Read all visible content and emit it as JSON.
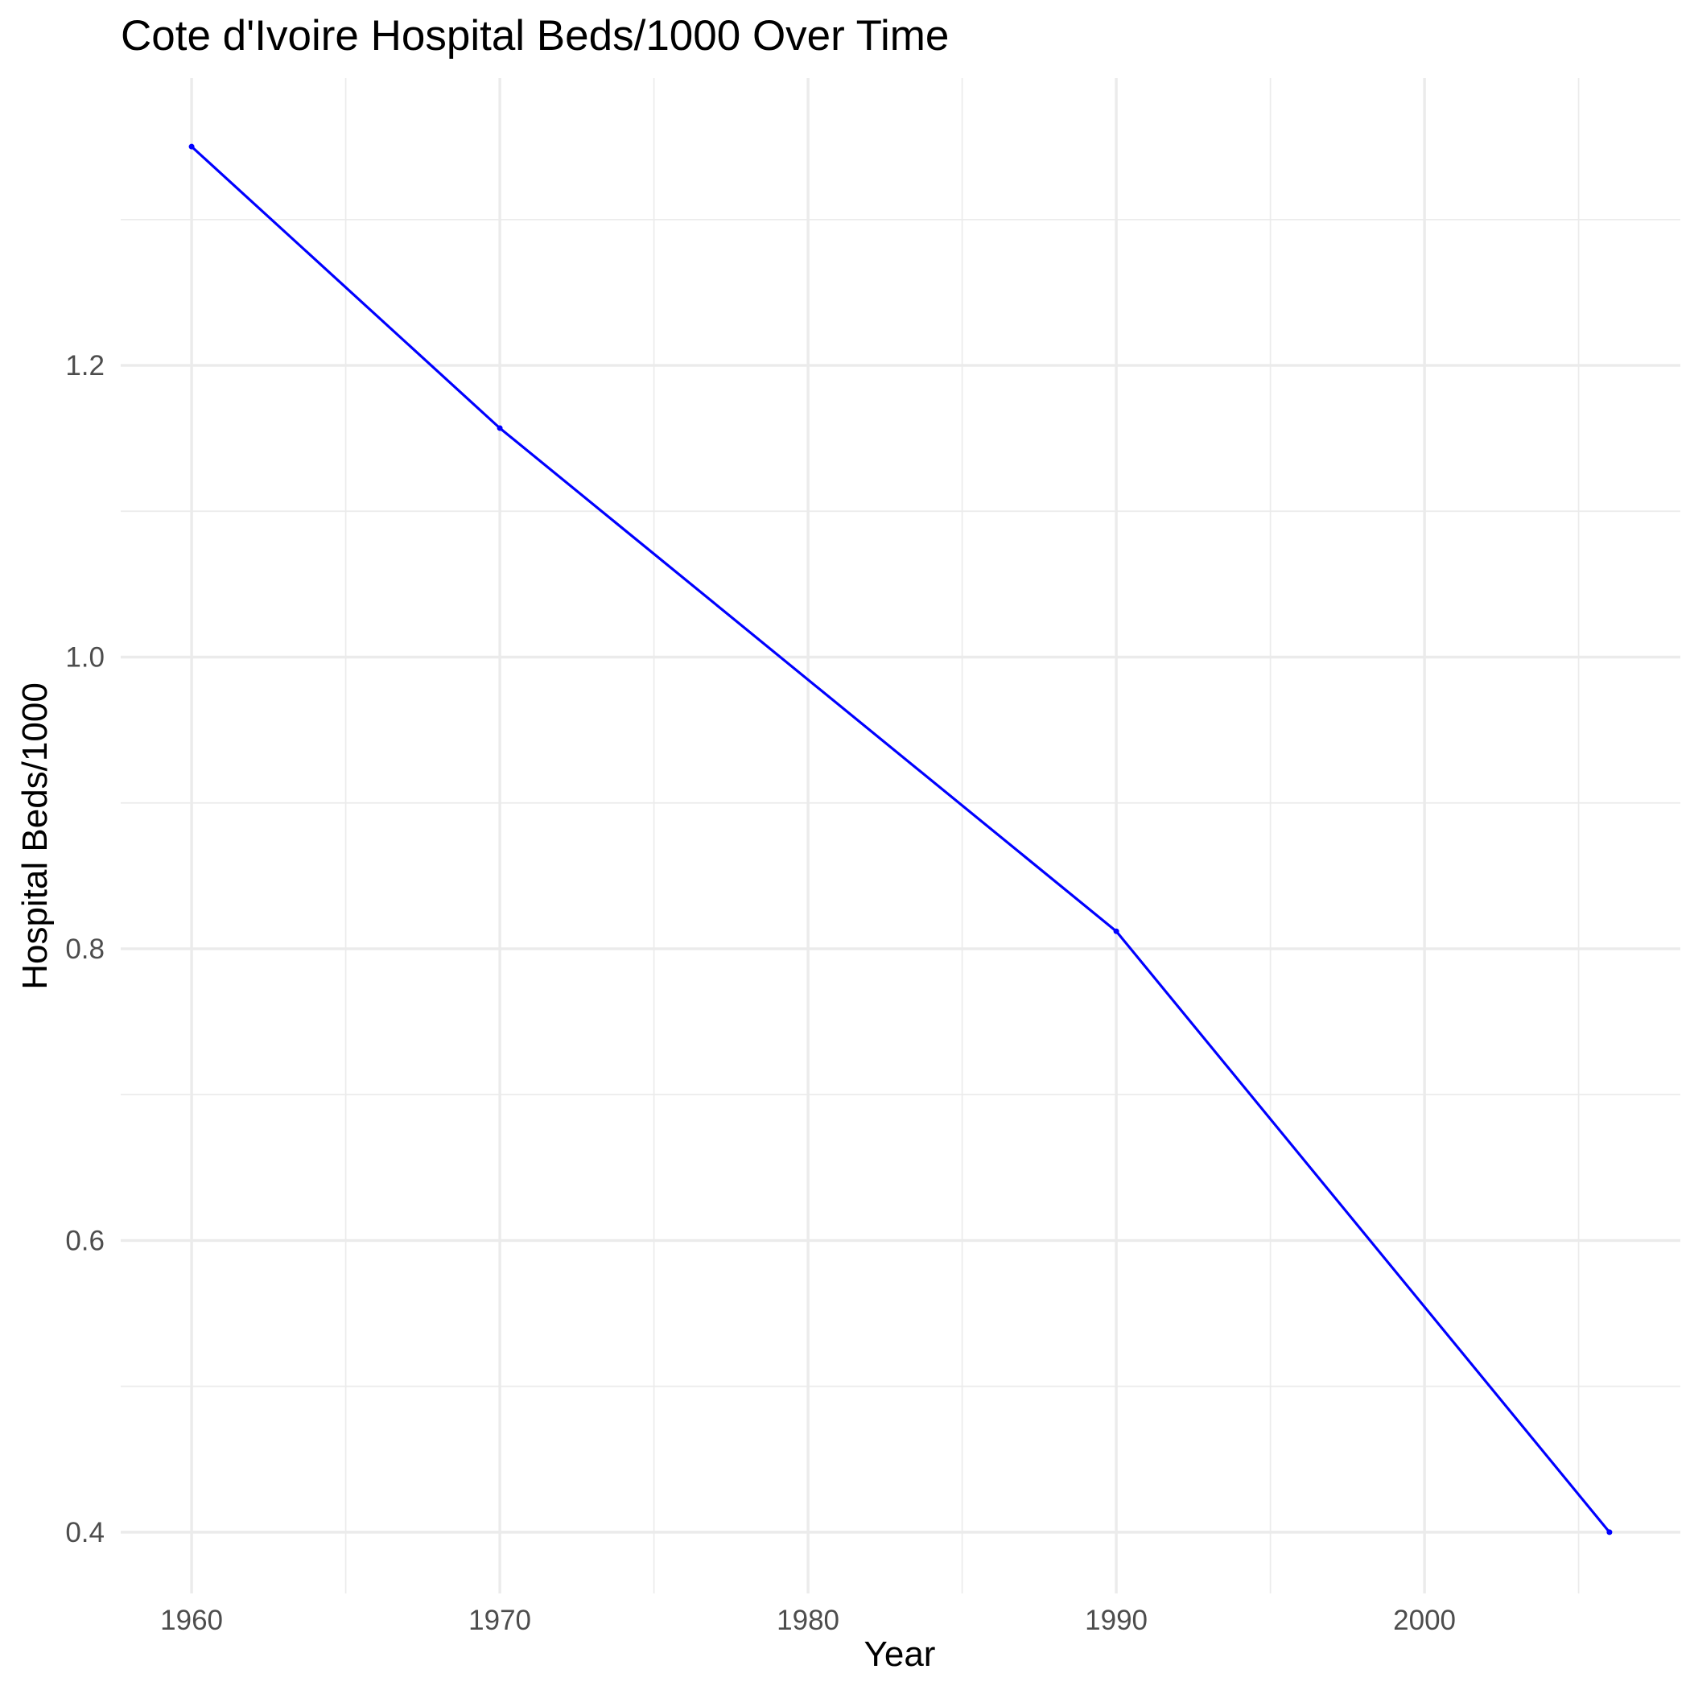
{
  "chart_data": {
    "type": "line",
    "title": "Cote d'Ivoire Hospital Beds/1000 Over Time",
    "xlabel": "Year",
    "ylabel": "Hospital Beds/1000",
    "x": [
      1960,
      1970,
      1990,
      2006
    ],
    "series": [
      {
        "values": [
          1.35,
          1.157,
          0.812,
          0.4
        ],
        "color": "#0000ff"
      }
    ],
    "xlim": [
      1957.7,
      2008.3
    ],
    "ylim": [
      0.358,
      1.397
    ],
    "x_ticks": [
      1960,
      1970,
      1980,
      1990,
      2000
    ],
    "x_tick_labels": [
      "1960",
      "1970",
      "1980",
      "1990",
      "2000"
    ],
    "x_minor_ticks": [
      1965,
      1975,
      1985,
      1995,
      2005
    ],
    "y_ticks": [
      0.4,
      0.6,
      0.8,
      1.0,
      1.2
    ],
    "y_tick_labels": [
      "0.4",
      "0.6",
      "0.8",
      "1.0",
      "1.2"
    ],
    "y_minor_ticks": [
      0.5,
      0.7,
      0.9,
      1.1,
      1.3
    ],
    "grid": true,
    "legend": "none",
    "background": "#ffffff"
  }
}
